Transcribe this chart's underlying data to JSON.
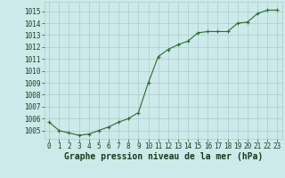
{
  "x": [
    0,
    1,
    2,
    3,
    4,
    5,
    6,
    7,
    8,
    9,
    10,
    11,
    12,
    13,
    14,
    15,
    16,
    17,
    18,
    19,
    20,
    21,
    22,
    23
  ],
  "y": [
    1005.7,
    1005.0,
    1004.8,
    1004.6,
    1004.7,
    1005.0,
    1005.3,
    1005.7,
    1006.0,
    1006.5,
    1009.0,
    1011.2,
    1011.8,
    1012.2,
    1012.5,
    1013.2,
    1013.3,
    1013.3,
    1013.3,
    1014.0,
    1014.1,
    1014.8,
    1015.1,
    1015.1
  ],
  "line_color": "#2d6a2d",
  "marker": "+",
  "marker_size": 3.5,
  "line_width": 0.8,
  "bg_color": "#cdeaea",
  "grid_color": "#aec8c8",
  "xlabel": "Graphe pression niveau de la mer (hPa)",
  "xlabel_color": "#1a3a1a",
  "xlabel_fontsize": 7,
  "ylabel_ticks": [
    1005,
    1006,
    1007,
    1008,
    1009,
    1010,
    1011,
    1012,
    1013,
    1014,
    1015
  ],
  "ylim": [
    1004.3,
    1015.8
  ],
  "xlim": [
    -0.5,
    23.5
  ],
  "tick_fontsize": 5.5,
  "tick_color": "#1a3a1a"
}
